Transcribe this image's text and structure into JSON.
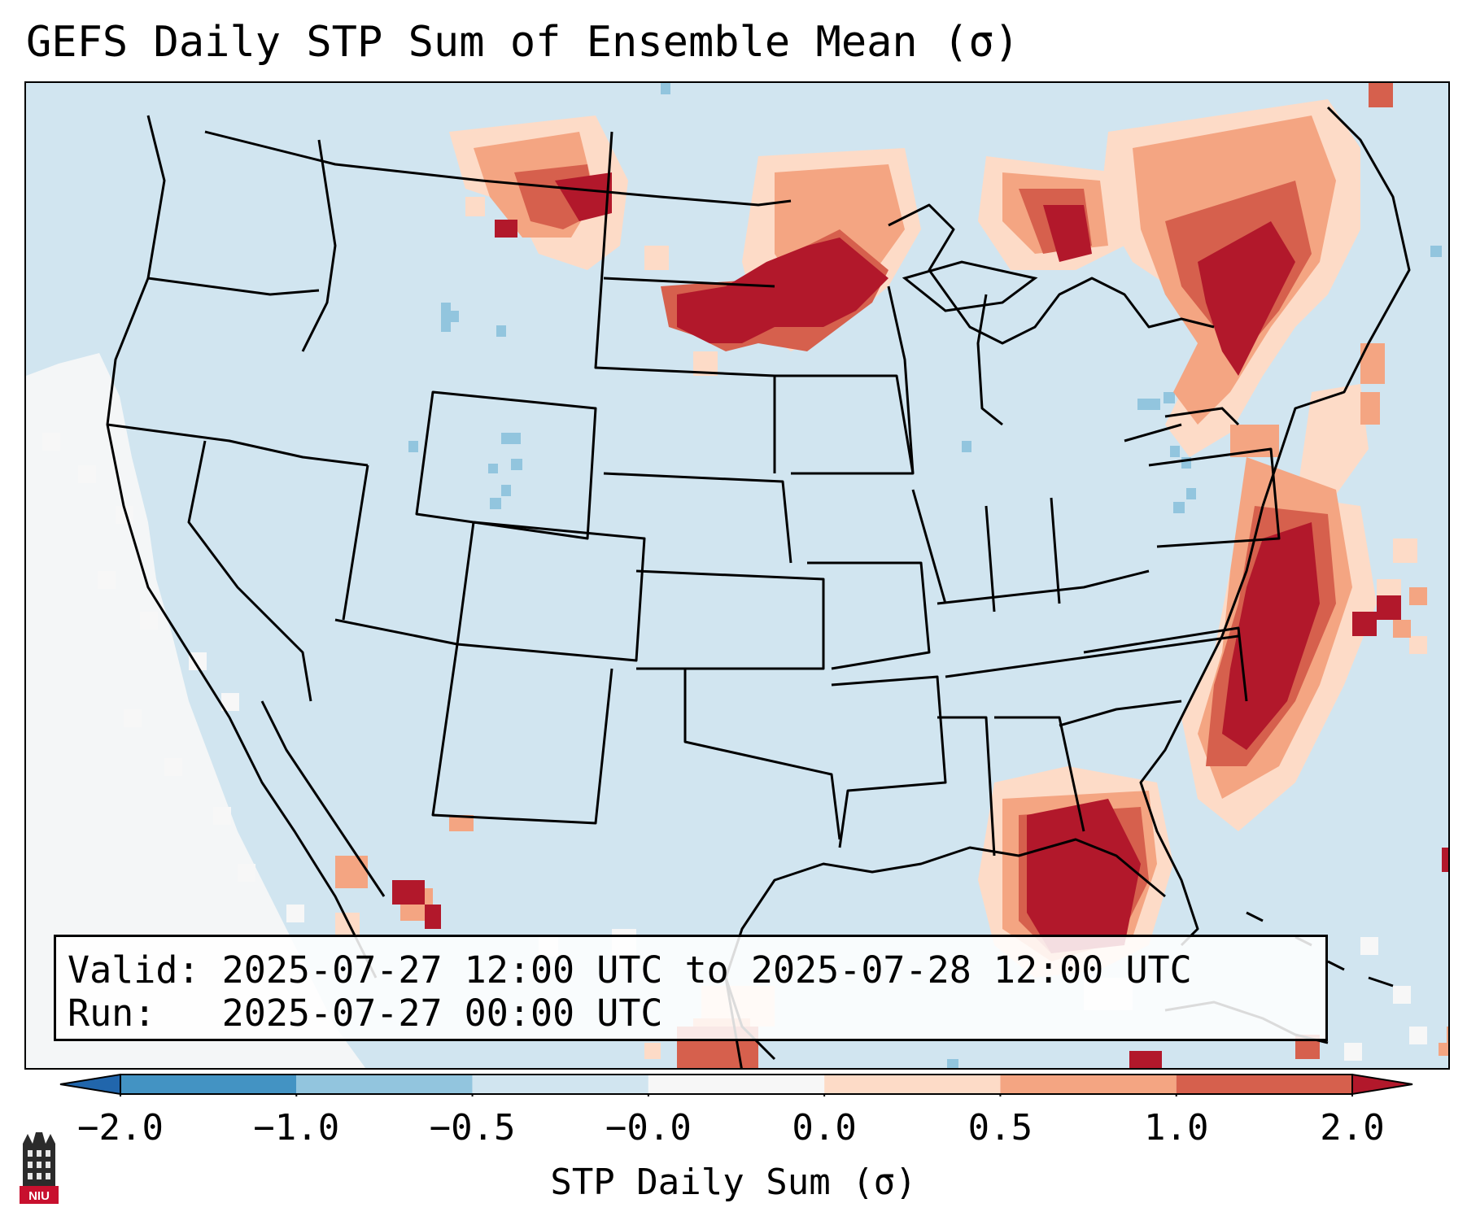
{
  "title": "GEFS Daily STP Sum of Ensemble Mean (σ)",
  "info": {
    "valid_label": "Valid:",
    "valid_text": "2025-07-27 12:00 UTC to 2025-07-28 12:00 UTC",
    "run_label": "Run:",
    "run_text": "2025-07-27 00:00 UTC"
  },
  "colorbar": {
    "label": "STP Daily Sum (σ)",
    "ticks": [
      "−2.0",
      "−1.0",
      "−0.5",
      "−0.0",
      "0.0",
      "0.5",
      "1.0",
      "2.0"
    ],
    "colors": [
      "#2166ac",
      "#4393c3",
      "#92c5de",
      "#d1e5f0",
      "#f7f7f7",
      "#fddbc7",
      "#f4a582",
      "#d6604d",
      "#b2182b"
    ],
    "extend": "both"
  },
  "legend_colors": {
    "land_background": "#d1e5f0",
    "boundaries": "#000000"
  },
  "logo": {
    "text": "NIU",
    "icon": "niu-tower-logo"
  }
}
